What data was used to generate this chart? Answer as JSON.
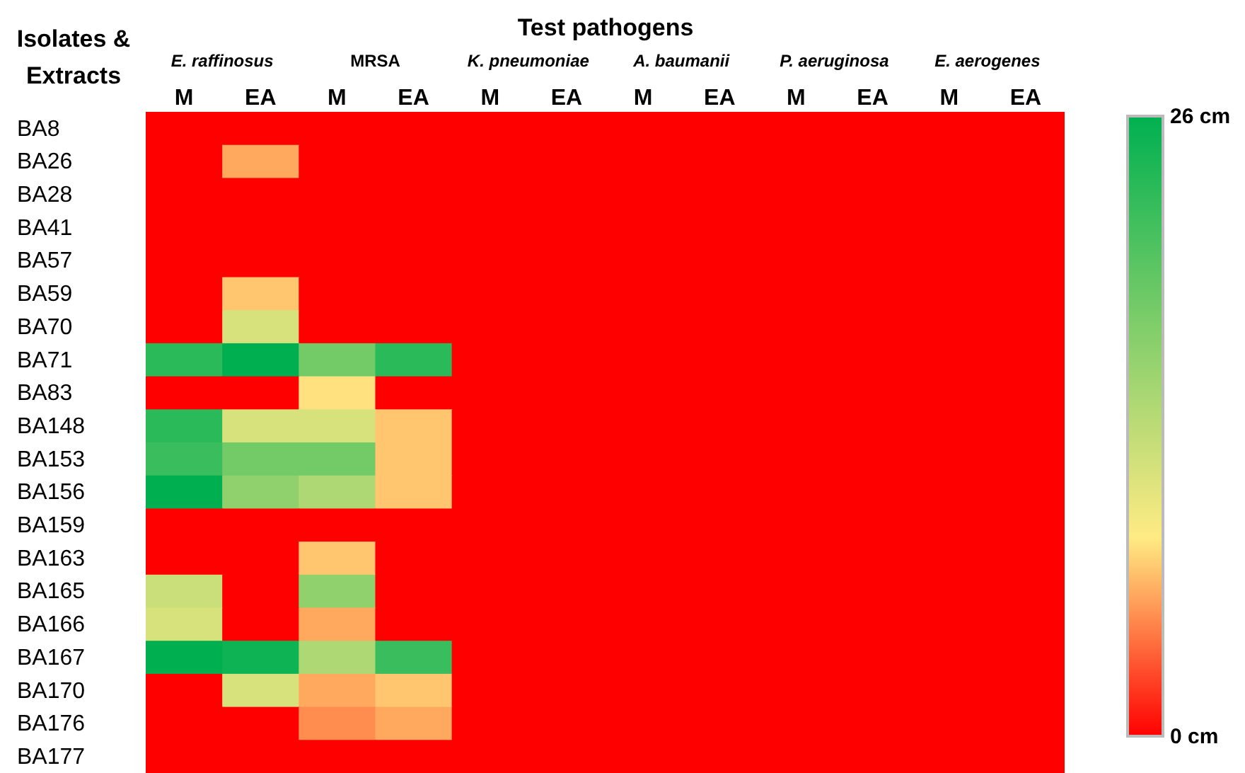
{
  "chart_data": {
    "type": "heatmap",
    "title": "Test pathogens",
    "ylabel": "Isolates & Extracts",
    "annotations": [
      "E. raffinosus",
      "MRSA",
      "K. pneumoniae",
      "A. baumanii",
      "P. aeruginosa",
      "E. aerogenes"
    ],
    "categories": [
      "M",
      "EA",
      "M",
      "EA",
      "M",
      "EA",
      "M",
      "EA",
      "M",
      "EA",
      "M",
      "EA"
    ],
    "y_categories": [
      "BA8",
      "BA26",
      "BA28",
      "BA41",
      "BA57",
      "BA59",
      "BA70",
      "BA71",
      "BA83",
      "BA148",
      "BA153",
      "BA156",
      "BA159",
      "BA163",
      "BA165",
      "BA166",
      "BA167",
      "BA170",
      "BA176",
      "BA177"
    ],
    "cells": [
      [
        0,
        0,
        0,
        0,
        0,
        0,
        0,
        0,
        0,
        0,
        0,
        0
      ],
      [
        0,
        6,
        0,
        0,
        0,
        0,
        0,
        0,
        0,
        0,
        0,
        0
      ],
      [
        0,
        0,
        0,
        0,
        0,
        0,
        0,
        0,
        0,
        0,
        0,
        0
      ],
      [
        0,
        0,
        0,
        0,
        0,
        0,
        0,
        0,
        0,
        0,
        0,
        0
      ],
      [
        0,
        0,
        0,
        0,
        0,
        0,
        0,
        0,
        0,
        0,
        0,
        0
      ],
      [
        0,
        7,
        0,
        0,
        0,
        0,
        0,
        0,
        0,
        0,
        0,
        0
      ],
      [
        0,
        11,
        0,
        0,
        0,
        0,
        0,
        0,
        0,
        0,
        0,
        0
      ],
      [
        23,
        26,
        18,
        23,
        0,
        0,
        0,
        0,
        0,
        0,
        0,
        0
      ],
      [
        0,
        0,
        8,
        0,
        0,
        0,
        0,
        0,
        0,
        0,
        0,
        0
      ],
      [
        23,
        11,
        11,
        7,
        0,
        0,
        0,
        0,
        0,
        0,
        0,
        0
      ],
      [
        22,
        18,
        18,
        7,
        0,
        0,
        0,
        0,
        0,
        0,
        0,
        0
      ],
      [
        26,
        16,
        14,
        7,
        0,
        0,
        0,
        0,
        0,
        0,
        0,
        0
      ],
      [
        0,
        0,
        0,
        0,
        0,
        0,
        0,
        0,
        0,
        0,
        0,
        0
      ],
      [
        0,
        0,
        7,
        0,
        0,
        0,
        0,
        0,
        0,
        0,
        0,
        0
      ],
      [
        12,
        0,
        16,
        0,
        0,
        0,
        0,
        0,
        0,
        0,
        0,
        0
      ],
      [
        11,
        0,
        6,
        0,
        0,
        0,
        0,
        0,
        0,
        0,
        0,
        0
      ],
      [
        26,
        25,
        14,
        22,
        0,
        0,
        0,
        0,
        0,
        0,
        0,
        0
      ],
      [
        0,
        11,
        6,
        7,
        0,
        0,
        0,
        0,
        0,
        0,
        0,
        0
      ],
      [
        0,
        0,
        5,
        6,
        0,
        0,
        0,
        0,
        0,
        0,
        0,
        0
      ],
      [
        0,
        0,
        0,
        0,
        0,
        0,
        0,
        0,
        0,
        0,
        0,
        0
      ]
    ],
    "clim": [
      0,
      26
    ],
    "cticks": [
      {
        "value": 0,
        "label": "0 cm"
      },
      {
        "value": 26,
        "label": "26 cm"
      }
    ]
  }
}
